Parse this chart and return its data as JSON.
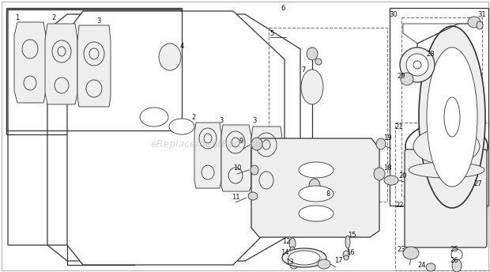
{
  "bg_color": "#ffffff",
  "line_color": "#555555",
  "dark_line": "#333333",
  "label_color": "#111111",
  "watermark": "eReplacementParts.com",
  "watermark_color": "#bbbbbb",
  "fig_width": 6.2,
  "fig_height": 3.44,
  "dpi": 100,
  "lw_thin": 0.6,
  "lw_med": 0.9,
  "lw_thick": 1.2,
  "label_fs": 6.0
}
